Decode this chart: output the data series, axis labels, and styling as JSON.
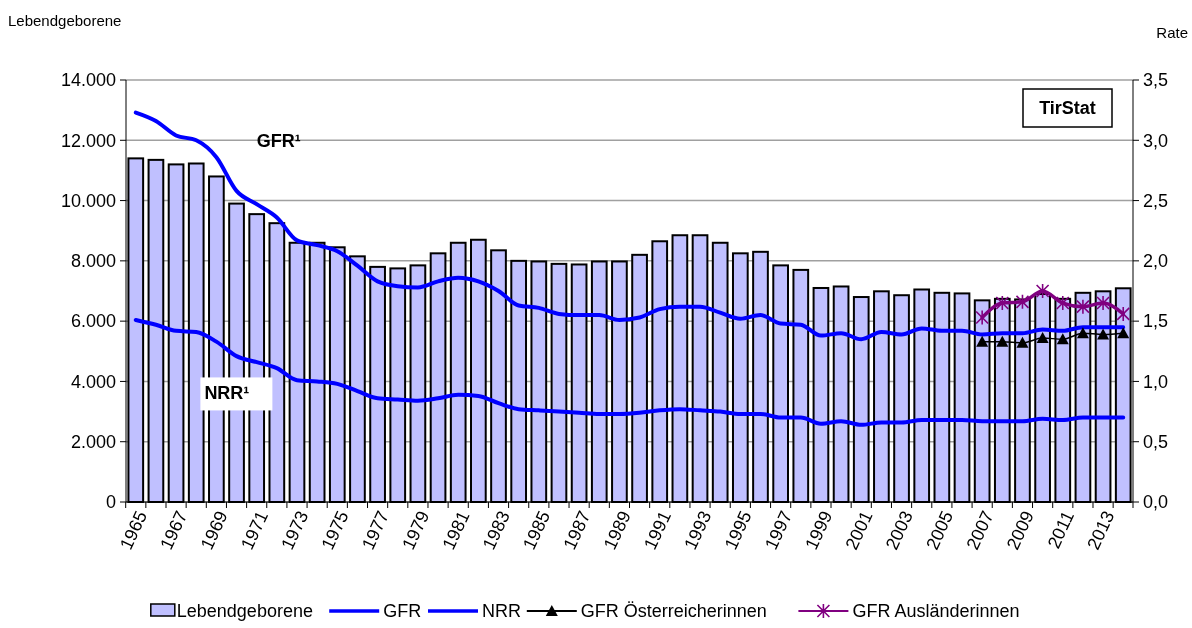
{
  "chart_data": {
    "type": "bar",
    "ylabel": "Lebendgeborene",
    "y2label": "Rate",
    "categories": [
      "1965",
      null,
      "1967",
      null,
      "1969",
      null,
      "1971",
      null,
      "1973",
      null,
      "1975",
      null,
      "1977",
      null,
      "1979",
      null,
      "1981",
      null,
      "1983",
      null,
      "1985",
      null,
      "1987",
      null,
      "1989",
      null,
      "1991",
      null,
      "1993",
      null,
      "1995",
      null,
      "1997",
      null,
      "1999",
      null,
      "2001",
      null,
      "2003",
      null,
      "2005",
      null,
      "2007",
      null,
      "2009",
      null,
      "2011",
      null,
      "2013",
      null
    ],
    "series": [
      {
        "name": "Lebendgeborene",
        "color": "#c0c0ff",
        "values": [
          11400,
          11350,
          11200,
          11230,
          10800,
          9900,
          9550,
          9250,
          8600,
          8600,
          8450,
          8150,
          7800,
          7750,
          7850,
          8250,
          8600,
          8700,
          8350,
          8000,
          7980,
          7900,
          7880,
          7980,
          7980,
          8200,
          8650,
          8850,
          8850,
          8600,
          8250,
          8300,
          7850,
          7700,
          7100,
          7150,
          6800,
          6990,
          6860,
          7050,
          6940,
          6920,
          6690,
          6740,
          6720,
          6900,
          6740,
          6940,
          6990,
          7090
        ]
      },
      {
        "name": "GFR",
        "type": "line",
        "axis": "y2",
        "color": "#0000ff",
        "marker": "none",
        "values": [
          3.23,
          3.16,
          3.04,
          3.0,
          2.86,
          2.58,
          2.47,
          2.36,
          2.17,
          2.13,
          2.08,
          1.96,
          1.83,
          1.79,
          1.78,
          1.83,
          1.86,
          1.83,
          1.75,
          1.63,
          1.61,
          1.56,
          1.55,
          1.55,
          1.51,
          1.53,
          1.6,
          1.62,
          1.62,
          1.57,
          1.52,
          1.55,
          1.48,
          1.47,
          1.38,
          1.4,
          1.35,
          1.41,
          1.39,
          1.44,
          1.42,
          1.42,
          1.39,
          1.4,
          1.4,
          1.43,
          1.42,
          1.45,
          1.45,
          1.45
        ]
      },
      {
        "name": "NRR",
        "type": "line",
        "axis": "y2",
        "color": "#0000ff",
        "marker": "none",
        "values": [
          1.51,
          1.47,
          1.42,
          1.41,
          1.33,
          1.21,
          1.16,
          1.11,
          1.01,
          1.0,
          0.98,
          0.92,
          0.86,
          0.85,
          0.84,
          0.86,
          0.89,
          0.88,
          0.82,
          0.77,
          0.76,
          0.75,
          0.74,
          0.73,
          0.73,
          0.74,
          0.76,
          0.77,
          0.76,
          0.75,
          0.73,
          0.73,
          0.7,
          0.7,
          0.65,
          0.67,
          0.64,
          0.66,
          0.66,
          0.68,
          0.68,
          0.68,
          0.67,
          0.67,
          0.67,
          0.69,
          0.68,
          0.7,
          0.7,
          0.7
        ]
      },
      {
        "name": "GFR Österreicherinnen",
        "type": "line",
        "axis": "y2",
        "color": "#000000",
        "marker": "triangle",
        "values": [
          null,
          null,
          null,
          null,
          null,
          null,
          null,
          null,
          null,
          null,
          null,
          null,
          null,
          null,
          null,
          null,
          null,
          null,
          null,
          null,
          null,
          null,
          null,
          null,
          null,
          null,
          null,
          null,
          null,
          null,
          null,
          null,
          null,
          null,
          null,
          null,
          null,
          null,
          null,
          null,
          null,
          null,
          1.33,
          1.33,
          1.32,
          1.36,
          1.35,
          1.4,
          1.39,
          1.4
        ]
      },
      {
        "name": "GFR Ausländerinnen",
        "type": "line",
        "axis": "y2",
        "color": "#800080",
        "marker": "cross",
        "values": [
          null,
          null,
          null,
          null,
          null,
          null,
          null,
          null,
          null,
          null,
          null,
          null,
          null,
          null,
          null,
          null,
          null,
          null,
          null,
          null,
          null,
          null,
          null,
          null,
          null,
          null,
          null,
          null,
          null,
          null,
          null,
          null,
          null,
          null,
          null,
          null,
          null,
          null,
          null,
          null,
          null,
          null,
          1.53,
          1.65,
          1.66,
          1.75,
          1.65,
          1.62,
          1.65,
          1.56
        ]
      }
    ],
    "ylim": [
      0,
      14000
    ],
    "yticks": [
      {
        "value": 0,
        "label": "0"
      },
      {
        "value": 2000,
        "label": "2.000"
      },
      {
        "value": 4000,
        "label": "4.000"
      },
      {
        "value": 6000,
        "label": "6.000"
      },
      {
        "value": 8000,
        "label": "8.000"
      },
      {
        "value": 10000,
        "label": "10.000"
      },
      {
        "value": 12000,
        "label": "12.000"
      },
      {
        "value": 14000,
        "label": "14.000"
      }
    ],
    "y2lim": [
      0,
      3.5
    ],
    "y2ticks": [
      {
        "value": 0,
        "label": "0,0"
      },
      {
        "value": 0.5,
        "label": "0,5"
      },
      {
        "value": 1,
        "label": "1,0"
      },
      {
        "value": 1.5,
        "label": "1,5"
      },
      {
        "value": 2,
        "label": "2,0"
      },
      {
        "value": 2.5,
        "label": "2,5"
      },
      {
        "value": 3,
        "label": "3,0"
      },
      {
        "value": 3.5,
        "label": "3,5"
      }
    ],
    "grid": "y",
    "legend": "bottom",
    "annotations": [
      "GFR¹",
      "NRR¹",
      "TirStat"
    ]
  }
}
